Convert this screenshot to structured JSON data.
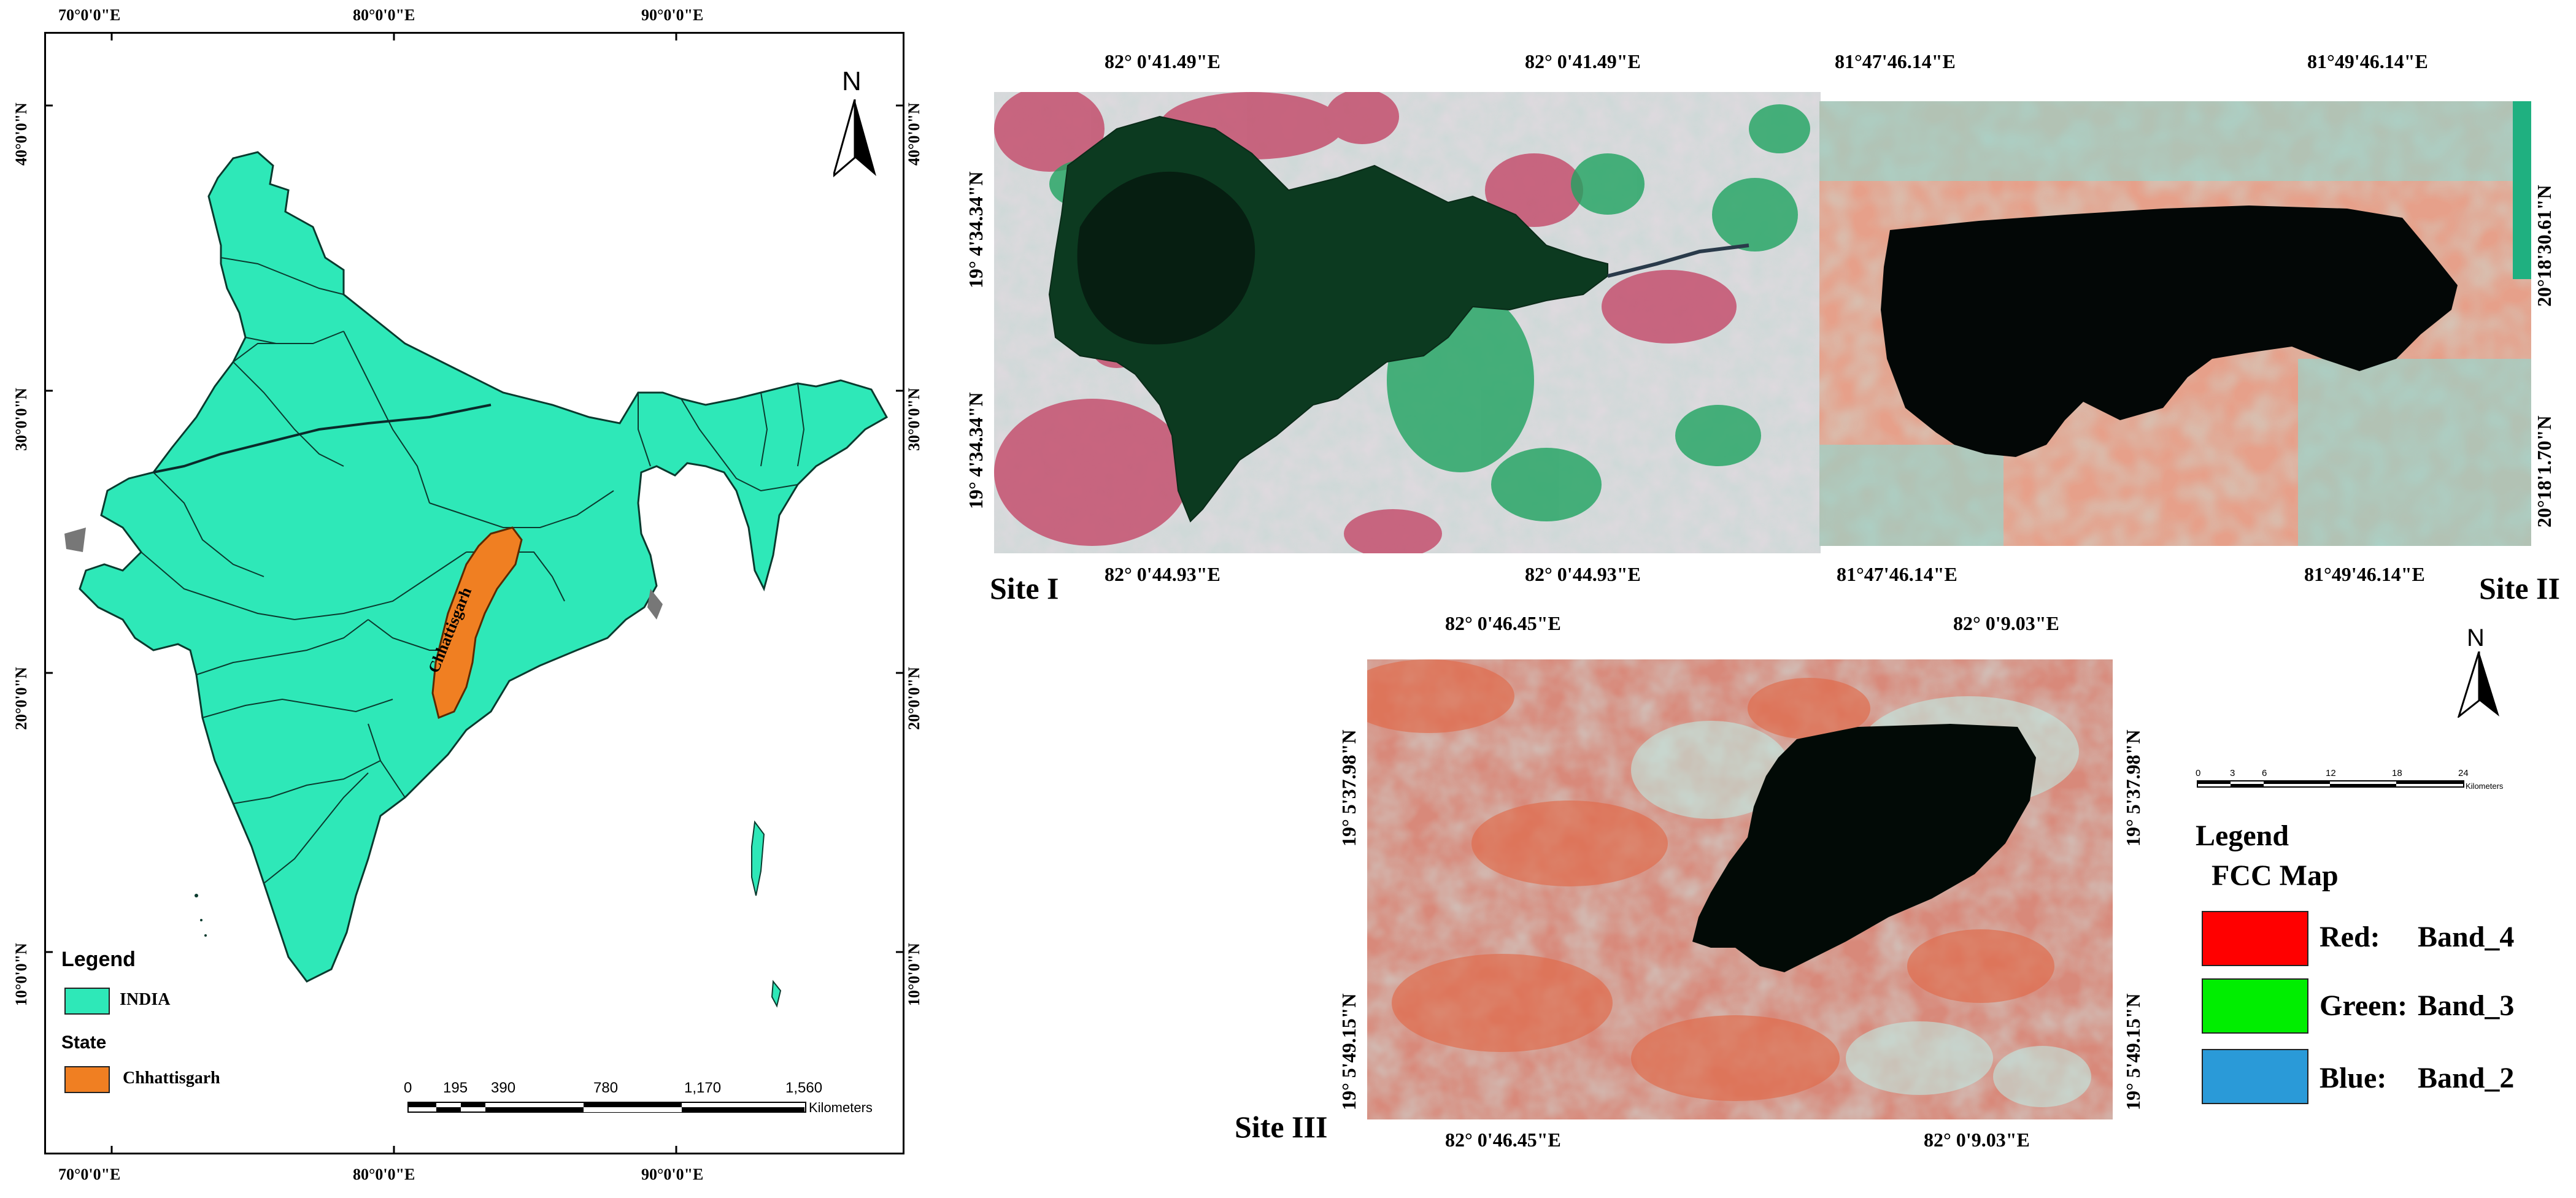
{
  "india_map": {
    "top_lon_labels": [
      "70°0'0\"E",
      "80°0'0\"E",
      "90°0'0\"E"
    ],
    "bottom_lon_labels": [
      "70°0'0\"E",
      "80°0'0\"E",
      "90°0'0\"E"
    ],
    "left_lat_labels": [
      "40°0'0\"N",
      "30°0'0\"N",
      "20°0'0\"N",
      "10°0'0\"N"
    ],
    "right_lat_labels": [
      "40°0'0\"N",
      "30°0'0\"N",
      "20°0'0\"N",
      "10°0'0\"N"
    ],
    "north_letter": "N",
    "state_label": "Chhattisgarh",
    "legend": {
      "title": "Legend",
      "india_label": "INDIA",
      "state_heading": "State",
      "state_item": "Chhattisgarh"
    },
    "scale_bar": {
      "ticks": [
        "0",
        "195",
        "390",
        "780",
        "1,170",
        "1,560"
      ],
      "unit": "Kilometers"
    },
    "colors": {
      "india": "#2ee8b8",
      "state": "#f07f22"
    }
  },
  "site1": {
    "label": "Site I",
    "top_labels": [
      "82° 0'41.49\"E",
      "82° 0'41.49\"E"
    ],
    "bottom_labels": [
      "82° 0'44.93\"E",
      "82° 0'44.93\"E"
    ],
    "left_labels": [
      "19° 4'34.34\"N",
      "19° 4'34.34\"N"
    ]
  },
  "site2": {
    "label": "Site II",
    "top_labels": [
      "81°47'46.14\"E",
      "81°49'46.14\"E"
    ],
    "bottom_labels": [
      "81°47'46.14\"E",
      "81°49'46.14\"E"
    ],
    "right_labels": [
      "20°18'30.61\"N",
      "20°18'1.70\"N"
    ]
  },
  "site3": {
    "label": "Site III",
    "top_labels": [
      "82° 0'46.45\"E",
      "82° 0'9.03\"E"
    ],
    "bottom_labels": [
      "82° 0'46.45\"E",
      "82° 0'9.03\"E"
    ],
    "left_labels": [
      "19° 5'37.98\"N",
      "19° 5'49.15\"N"
    ],
    "right_labels": [
      "19° 5'37.98\"N",
      "19° 5'49.15\"N"
    ]
  },
  "right_panel": {
    "north_letter": "N",
    "scale_ticks": [
      "0",
      "3",
      "6",
      "12",
      "18",
      "24"
    ],
    "scale_unit": "Kilometers",
    "legend_title": "Legend",
    "legend_subtitle": "FCC Map",
    "items": [
      {
        "label": "Red:",
        "band": "Band_4",
        "color": "#ff0000"
      },
      {
        "label": "Green:",
        "band": "Band_3",
        "color": "#00ee00"
      },
      {
        "label": "Blue:",
        "band": "Band_2",
        "color": "#2a9ad8"
      }
    ]
  }
}
